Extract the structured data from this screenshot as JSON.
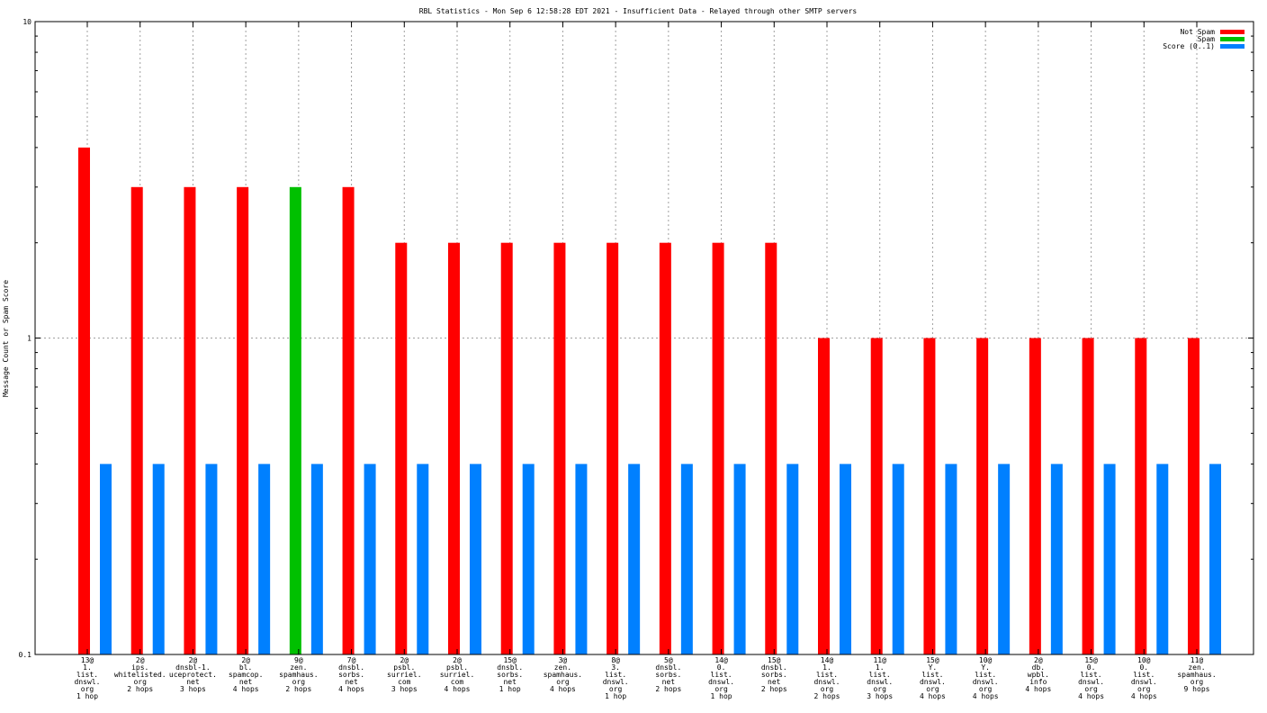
{
  "chart_data": {
    "type": "bar",
    "title": "RBL Statistics - Mon Sep  6 12:58:28 EDT 2021 - Insufficient Data - Relayed through other SMTP servers",
    "ylabel": "Message Count or Spam Score",
    "xlabel": "",
    "yscale": "log",
    "ylim": [
      0.1,
      10
    ],
    "yticks": [
      "10",
      "1",
      "0.1"
    ],
    "grid": true,
    "legend_position": "top-right",
    "categories": [
      [
        "13@",
        "1.",
        "list.",
        "dnswl.",
        "org",
        "1 hop"
      ],
      [
        "2@",
        "ips.",
        "whitelisted.",
        "org",
        "2 hops"
      ],
      [
        "2@",
        "dnsbl-1.",
        "uceprotect.",
        "net",
        "3 hops"
      ],
      [
        "2@",
        "bl.",
        "spamcop.",
        "net",
        "4 hops"
      ],
      [
        "9@",
        "zen.",
        "spamhaus.",
        "org",
        "2 hops"
      ],
      [
        "7@",
        "dnsbl.",
        "sorbs.",
        "net",
        "4 hops"
      ],
      [
        "2@",
        "psbl.",
        "surriel.",
        "com",
        "3 hops"
      ],
      [
        "2@",
        "psbl.",
        "surriel.",
        "com",
        "4 hops"
      ],
      [
        "15@",
        "dnsbl.",
        "sorbs.",
        "net",
        "1 hop"
      ],
      [
        "3@",
        "zen.",
        "spamhaus.",
        "org",
        "4 hops"
      ],
      [
        "8@",
        "3.",
        "list.",
        "dnswl.",
        "org",
        "1 hop"
      ],
      [
        "5@",
        "dnsbl.",
        "sorbs.",
        "net",
        "2 hops"
      ],
      [
        "14@",
        "0.",
        "list.",
        "dnswl.",
        "org",
        "1 hop"
      ],
      [
        "15@",
        "dnsbl.",
        "sorbs.",
        "net",
        "2 hops"
      ],
      [
        "14@",
        "1.",
        "list.",
        "dnswl.",
        "org",
        "2 hops"
      ],
      [
        "11@",
        "1.",
        "list.",
        "dnswl.",
        "org",
        "3 hops"
      ],
      [
        "15@",
        "Y.",
        "list.",
        "dnswl.",
        "org",
        "4 hops"
      ],
      [
        "10@",
        "Y.",
        "list.",
        "dnswl.",
        "org",
        "4 hops"
      ],
      [
        "2@",
        "db.",
        "wpbl.",
        "info",
        "4 hops"
      ],
      [
        "15@",
        "0.",
        "list.",
        "dnswl.",
        "org",
        "4 hops"
      ],
      [
        "10@",
        "0.",
        "list.",
        "dnswl.",
        "org",
        "4 hops"
      ],
      [
        "11@",
        "zen.",
        "spamhaus.",
        "org",
        "9 hops"
      ]
    ],
    "series": [
      {
        "name": "Not Spam",
        "color": "#ff0000",
        "values": [
          4,
          3,
          3,
          3,
          0,
          3,
          2,
          2,
          2,
          2,
          2,
          2,
          2,
          2,
          1,
          1,
          1,
          1,
          1,
          1,
          1,
          1
        ]
      },
      {
        "name": "Spam",
        "color": "#00c000",
        "values": [
          0,
          0,
          0,
          0,
          3,
          0,
          0,
          0,
          0,
          0,
          0,
          0,
          0,
          0,
          0,
          0,
          0,
          0,
          0,
          0,
          0,
          0
        ]
      },
      {
        "name": "Score (0..1)",
        "color": "#0080ff",
        "values": [
          0.4,
          0.4,
          0.4,
          0.4,
          0.4,
          0.4,
          0.4,
          0.4,
          0.4,
          0.4,
          0.4,
          0.4,
          0.4,
          0.4,
          0.4,
          0.4,
          0.4,
          0.4,
          0.4,
          0.4,
          0.4,
          0.4
        ]
      }
    ]
  }
}
